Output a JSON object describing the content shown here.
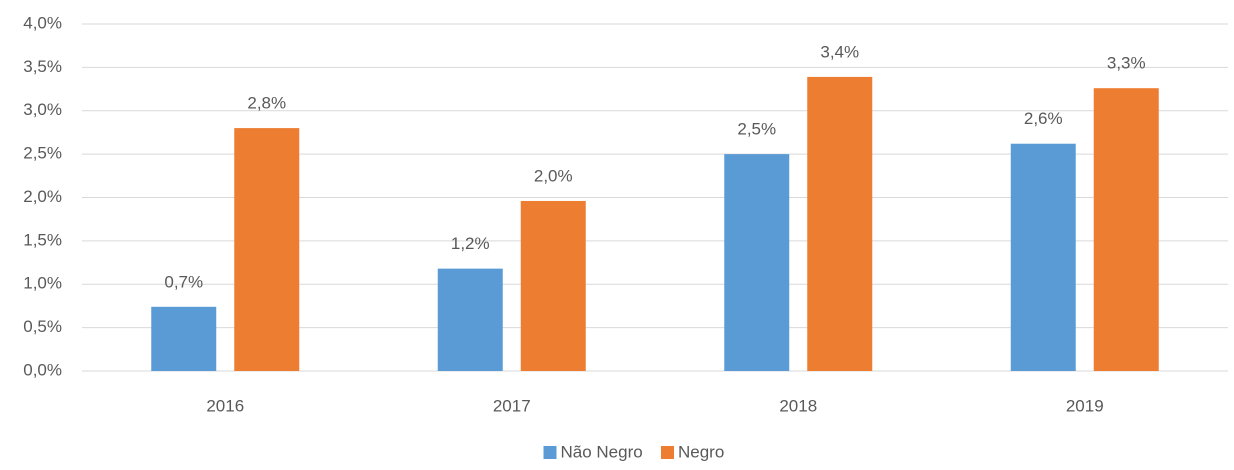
{
  "chart_data": {
    "type": "bar",
    "categories": [
      "2016",
      "2017",
      "2018",
      "2019"
    ],
    "series": [
      {
        "name": "Não Negro",
        "color": "#5b9bd5",
        "values": [
          0.74,
          1.18,
          2.5,
          2.62
        ],
        "value_labels": [
          "0,7%",
          "1,2%",
          "2,5%",
          "2,6%"
        ]
      },
      {
        "name": "Negro",
        "color": "#ed7d31",
        "values": [
          2.8,
          1.96,
          3.39,
          3.26
        ],
        "value_labels": [
          "2,8%",
          "2,0%",
          "3,4%",
          "3,3%"
        ]
      }
    ],
    "ylim": [
      0,
      4
    ],
    "yticks": [
      {
        "value": 0,
        "label": "0,0%"
      },
      {
        "value": 0.5,
        "label": "0,5%"
      },
      {
        "value": 1,
        "label": "1,0%"
      },
      {
        "value": 1.5,
        "label": "1,5%"
      },
      {
        "value": 2,
        "label": "2,0%"
      },
      {
        "value": 2.5,
        "label": "2,5%"
      },
      {
        "value": 3,
        "label": "3,0%"
      },
      {
        "value": 3.5,
        "label": "3,5%"
      },
      {
        "value": 4,
        "label": "4,0%"
      }
    ],
    "grid": true,
    "legend": "bottom"
  }
}
